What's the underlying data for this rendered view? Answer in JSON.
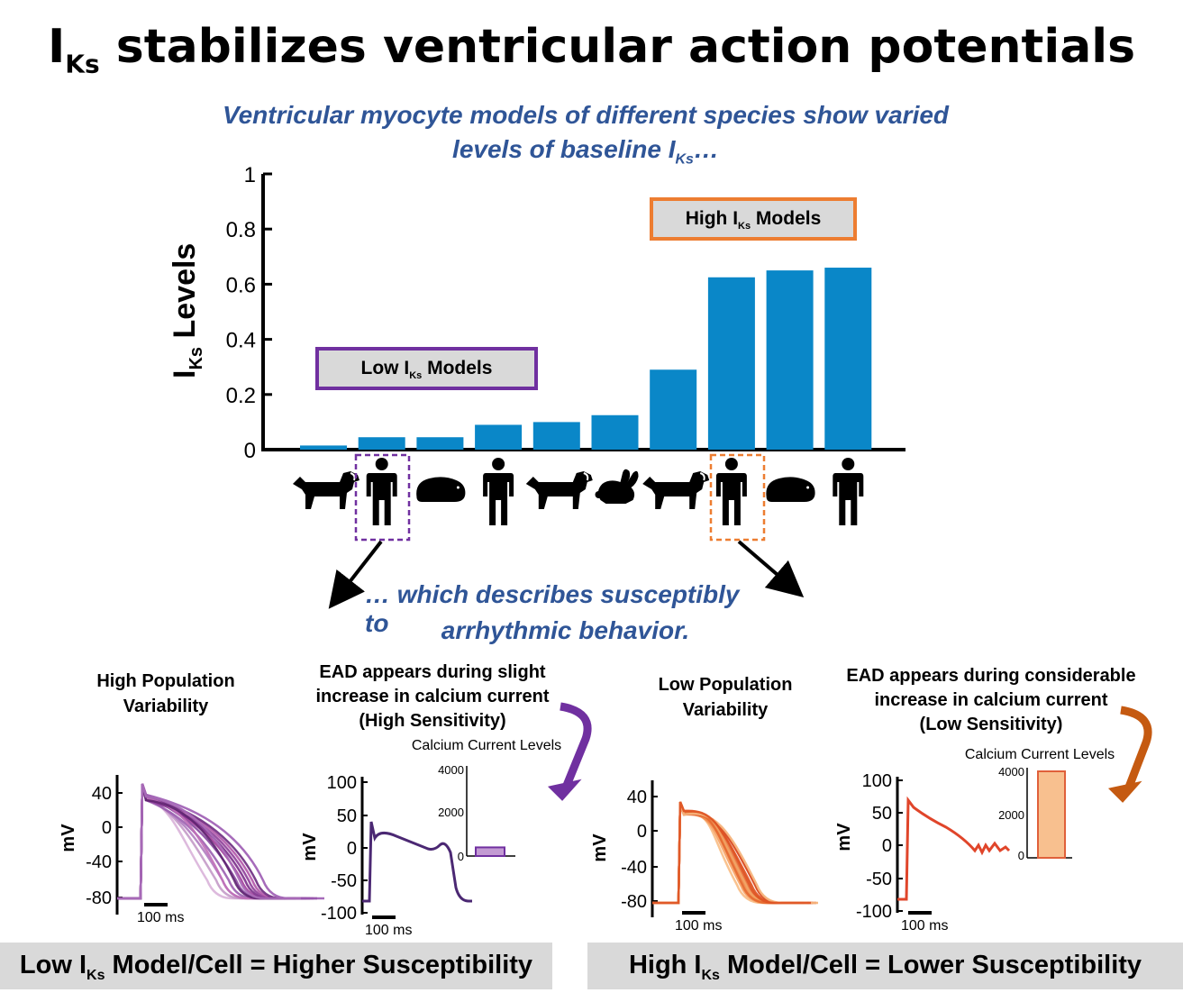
{
  "title": {
    "main": "I",
    "sub": "Ks",
    "rest": " stabilizes ventricular action potentials"
  },
  "caption_top": {
    "line1": "Ventricular myocyte models of different species show varied",
    "line2_pre": "levels of baseline I",
    "line2_sub": "Ks",
    "line2_post": "…"
  },
  "caption_mid": {
    "line1": "… which describes susceptibly to",
    "line2": "arrhythmic behavior."
  },
  "low_box": {
    "pre": "Low I",
    "sub": "Ks",
    "post": " Models"
  },
  "high_box": {
    "pre": "High I",
    "sub": "Ks",
    "post": " Models"
  },
  "colors": {
    "bar": "#0a87c8",
    "low": "#7030a0",
    "high": "#ed7d31",
    "caption": "#2f5597",
    "banner": "#d9d9d9"
  },
  "chart_data": [
    {
      "type": "bar",
      "ylabel_pre": "I",
      "ylabel_sub": "Ks",
      "ylabel_post": " Levels",
      "ylim": [
        0,
        1
      ],
      "yticks": [
        "0",
        "0.2",
        "0.4",
        "0.6",
        "0.8",
        "1"
      ],
      "yticks_values": [
        0,
        0.2,
        0.4,
        0.6,
        0.8,
        1
      ],
      "categories": [
        "dog",
        "human",
        "guinea-pig",
        "human",
        "dog",
        "rabbit",
        "dog",
        "human",
        "guinea-pig",
        "human"
      ],
      "values": [
        0.015,
        0.045,
        0.045,
        0.09,
        0.1,
        0.125,
        0.29,
        0.625,
        0.65,
        0.66
      ]
    },
    {
      "type": "line",
      "title": "High Population Variability",
      "ylabel": "mV",
      "yticks": [
        "40",
        "0",
        "-40",
        "-80"
      ],
      "scalebar": "100 ms"
    },
    {
      "type": "line",
      "title": "EAD appears during slight increase in calcium current (High Sensitivity)",
      "title_lines": [
        "EAD appears during slight",
        "increase in calcium current",
        "(High Sensitivity)"
      ],
      "ylabel": "mV",
      "yticks": [
        "100",
        "50",
        "0",
        "-50",
        "-100"
      ],
      "scalebar": "100 ms"
    },
    {
      "type": "bar",
      "title": "Calcium Current Levels",
      "yticks": [
        "4000",
        "2000",
        "0"
      ],
      "ylim": [
        0,
        4000
      ],
      "values": [
        400
      ]
    },
    {
      "type": "line",
      "title": "Low Population Variability",
      "ylabel": "mV",
      "yticks": [
        "40",
        "0",
        "-40",
        "-80"
      ],
      "scalebar": "100 ms"
    },
    {
      "type": "line",
      "title": "EAD appears during considerable increase in calcium current (Low Sensitivity)",
      "title_lines": [
        "EAD appears during considerable",
        "increase in calcium current",
        "(Low Sensitivity)"
      ],
      "ylabel": "mV",
      "yticks": [
        "100",
        "50",
        "0",
        "-50",
        "-100"
      ],
      "scalebar": "100 ms"
    },
    {
      "type": "bar",
      "title": "Calcium Current Levels",
      "yticks": [
        "4000",
        "2000",
        "0"
      ],
      "ylim": [
        0,
        4000
      ],
      "values": [
        4000
      ]
    }
  ],
  "panels": {
    "low_pop": {
      "line1": "High Population",
      "line2": "Variability"
    },
    "high_pop": {
      "line1": "Low Population",
      "line2": "Variability"
    }
  },
  "banner_left": {
    "pre": "Low I",
    "sub": "Ks",
    "post": " Model/Cell = Higher Susceptibility"
  },
  "banner_right": {
    "pre": "High I",
    "sub": "Ks",
    "post": " Model/Cell = Lower Susceptibility"
  }
}
